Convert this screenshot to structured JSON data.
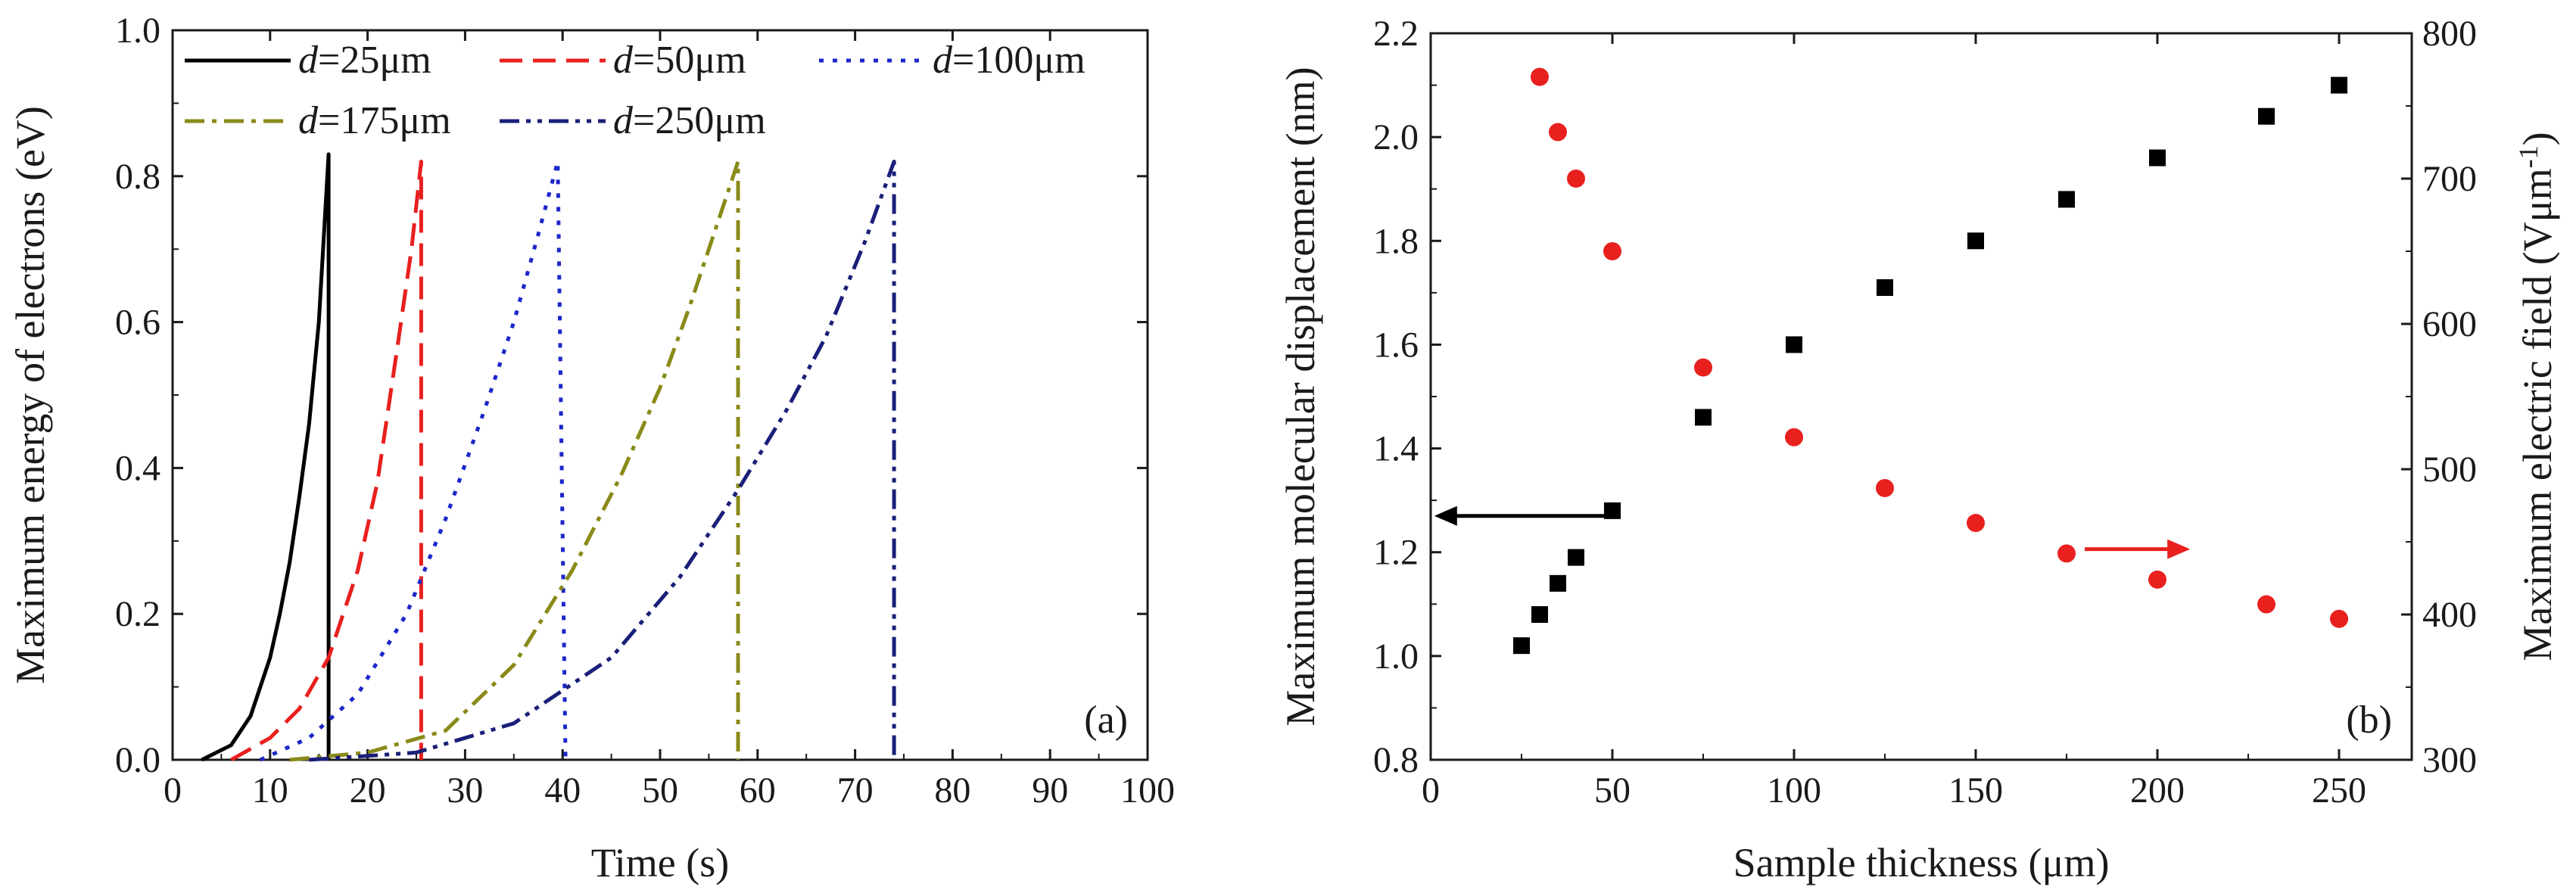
{
  "chart_data": [
    {
      "type": "line",
      "panel_label": "(a)",
      "xlabel": "Time (s)",
      "ylabel": "Maximum energy of electrons (eV)",
      "xlim": [
        0,
        100
      ],
      "ylim": [
        0,
        1.0
      ],
      "xticks": [
        0,
        10,
        20,
        30,
        40,
        50,
        60,
        70,
        80,
        90,
        100
      ],
      "yticks": [
        "0.0",
        "0.2",
        "0.4",
        "0.6",
        "0.8",
        "1.0"
      ],
      "legend_position": "top",
      "series": [
        {
          "name": "d=25μm",
          "legend_italic": "d",
          "legend_rest": "=25μm",
          "color": "#000000",
          "dash": "solid",
          "x": [
            3,
            6,
            8,
            10,
            11,
            12,
            13,
            14,
            15,
            16,
            16,
            16
          ],
          "y": [
            0.0,
            0.02,
            0.06,
            0.14,
            0.2,
            0.27,
            0.36,
            0.46,
            0.6,
            0.83,
            0.0,
            0.0
          ]
        },
        {
          "name": "d=50μm",
          "legend_italic": "d",
          "legend_rest": "=50μm",
          "color": "#e8201e",
          "dash": "dash",
          "x": [
            6,
            10,
            13,
            16,
            19,
            21,
            23,
            24.5,
            25.5,
            25.5,
            25.5
          ],
          "y": [
            0.0,
            0.03,
            0.07,
            0.14,
            0.26,
            0.38,
            0.56,
            0.7,
            0.82,
            0.0,
            0.0
          ]
        },
        {
          "name": "d=100μm",
          "legend_italic": "d",
          "legend_rest": "=100μm",
          "color": "#1c27c9",
          "dash": "dot",
          "x": [
            9,
            14,
            19,
            24,
            28,
            32,
            35,
            37.5,
            39.5,
            40.3,
            40.3
          ],
          "y": [
            0.0,
            0.03,
            0.09,
            0.2,
            0.33,
            0.48,
            0.6,
            0.72,
            0.82,
            0.0,
            0.0
          ]
        },
        {
          "name": "d=175μm",
          "legend_italic": "d",
          "legend_rest": "=175μm",
          "color": "#8a8a1a",
          "dash": "dashdot",
          "x": [
            12,
            20,
            28,
            35,
            41,
            46,
            50,
            53,
            56,
            58,
            58
          ],
          "y": [
            0.0,
            0.01,
            0.04,
            0.13,
            0.26,
            0.39,
            0.51,
            0.62,
            0.74,
            0.82,
            0.0
          ]
        },
        {
          "name": "d=250μm",
          "legend_italic": "d",
          "legend_rest": "=250μm",
          "color": "#1a1f78",
          "dash": "dashdotdot",
          "x": [
            14,
            25,
            35,
            45,
            52,
            58,
            63,
            67,
            71,
            74,
            74
          ],
          "y": [
            0.0,
            0.01,
            0.05,
            0.14,
            0.25,
            0.37,
            0.48,
            0.58,
            0.71,
            0.82,
            0.0
          ]
        }
      ]
    },
    {
      "type": "scatter",
      "panel_label": "(b)",
      "xlabel": "Sample thickness (μm)",
      "ylabel_left": "Maximum molecular displacement (nm)",
      "ylabel_right_base": "Maximum electric field (Vμm",
      "ylabel_right_sup": "-1",
      "ylabel_right_close": ")",
      "xlim": [
        0,
        270
      ],
      "ylim_left": [
        0.8,
        2.2
      ],
      "ylim_right": [
        300,
        800
      ],
      "xticks": [
        0,
        50,
        100,
        150,
        200,
        250
      ],
      "yticks_left": [
        "0.8",
        "1.0",
        "1.2",
        "1.4",
        "1.6",
        "1.8",
        "2.0",
        "2.2"
      ],
      "yticks_right": [
        "300",
        "400",
        "500",
        "600",
        "700",
        "800"
      ],
      "series": [
        {
          "axis": "left",
          "color": "#000000",
          "marker": "square",
          "x": [
            25,
            30,
            35,
            40,
            50,
            75,
            100,
            125,
            150,
            175,
            200,
            230,
            250
          ],
          "y": [
            1.02,
            1.08,
            1.14,
            1.19,
            1.28,
            1.46,
            1.6,
            1.71,
            1.8,
            1.88,
            1.96,
            2.04,
            2.1
          ]
        },
        {
          "axis": "right",
          "color": "#e8201e",
          "marker": "circle",
          "x": [
            30,
            35,
            40,
            50,
            75,
            100,
            125,
            150,
            175,
            200,
            230,
            250
          ],
          "y": [
            770,
            732,
            700,
            650,
            570,
            522,
            487,
            463,
            442,
            424,
            407,
            397
          ]
        }
      ],
      "annotations": [
        {
          "type": "arrow",
          "color": "#000000",
          "direction": "left",
          "points_to_axis": "left"
        },
        {
          "type": "arrow",
          "color": "#e8201e",
          "direction": "right",
          "points_to_axis": "right"
        }
      ]
    }
  ]
}
